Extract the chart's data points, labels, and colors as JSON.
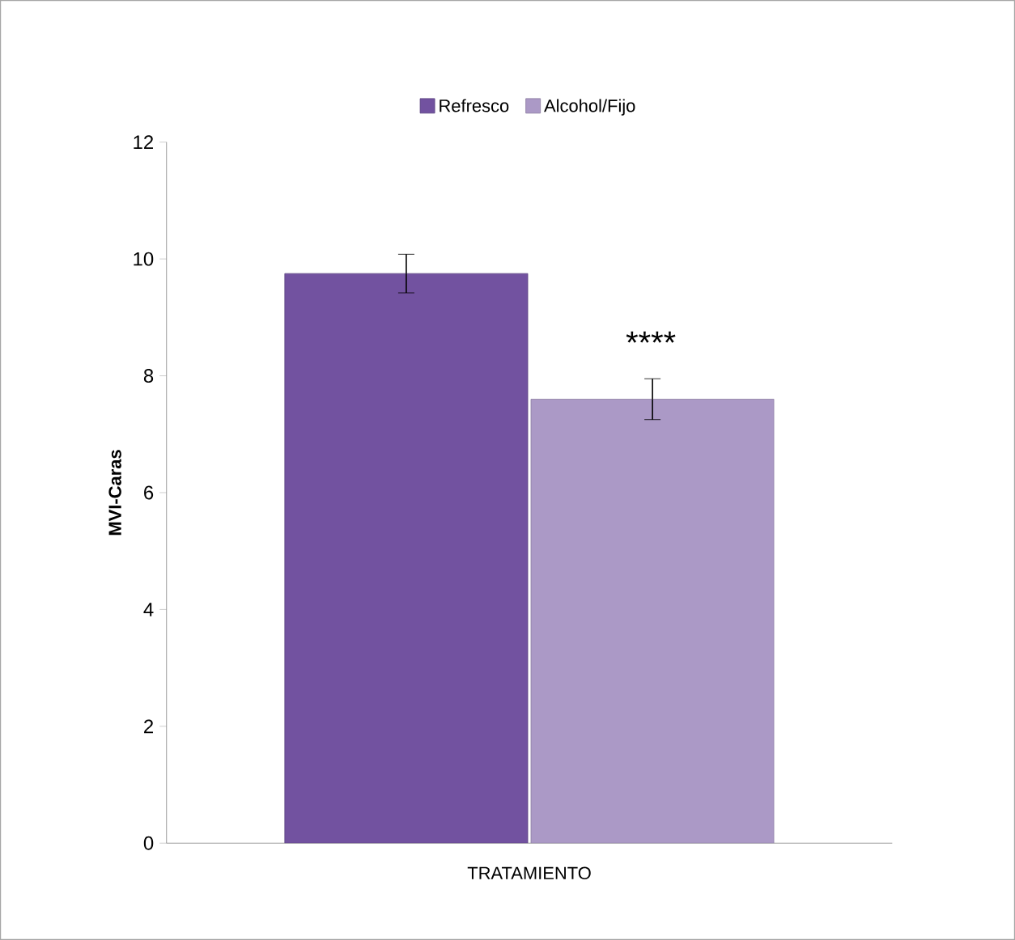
{
  "chart_data": {
    "type": "bar",
    "xlabel": "TRATAMIENTO",
    "ylabel": "MVI-Caras",
    "categories": [
      null
    ],
    "series": [
      {
        "name": "Refresco",
        "color": "#7252a0",
        "values": [
          9.75
        ],
        "errors": [
          0.33
        ]
      },
      {
        "name": "Alcohol/Fijo",
        "color": "#ab99c6",
        "values": [
          7.6
        ],
        "errors": [
          0.35
        ]
      }
    ],
    "ylim": [
      0,
      12
    ],
    "yticks": [
      0,
      2,
      4,
      6,
      8,
      10,
      12
    ],
    "grid": false,
    "legend": "top",
    "annotations": [
      "****"
    ]
  }
}
